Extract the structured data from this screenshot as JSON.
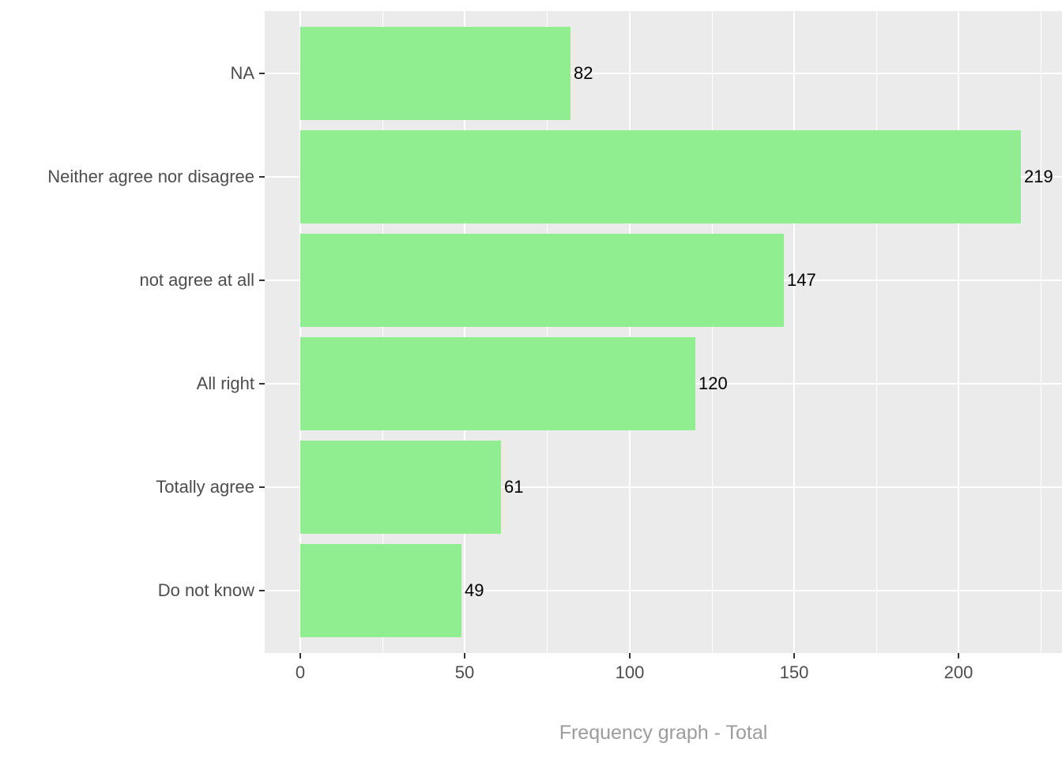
{
  "chart_data": {
    "type": "bar",
    "orientation": "horizontal",
    "title": "",
    "xlabel": "Frequency graph - Total",
    "ylabel": "",
    "categories": [
      "NA",
      "Neither agree nor disagree",
      "not agree at all",
      "All right",
      "Totally agree",
      "Do not know"
    ],
    "values": [
      82,
      219,
      147,
      120,
      61,
      49
    ],
    "bar_labels": [
      "82",
      "219",
      "147",
      "120",
      "61",
      "49"
    ],
    "x_axis": {
      "major_ticks": [
        0,
        50,
        100,
        150,
        200
      ],
      "major_tick_labels": [
        "0",
        "50",
        "100",
        "150",
        "200"
      ],
      "minor_ticks": [
        25,
        75,
        125,
        175,
        225
      ],
      "range": [
        -10.8,
        231.4
      ]
    },
    "grid": true,
    "legend_position": "none",
    "colors": {
      "bar": "#90EE90",
      "panel_background": "#EBEBEB",
      "gridline": "#FFFFFF",
      "axis_text": "#4D4D4D",
      "tick_mark": "#333333",
      "bar_label": "#000000",
      "axis_title": "#9C9C9C",
      "page_background": "#FFFFFF"
    }
  }
}
